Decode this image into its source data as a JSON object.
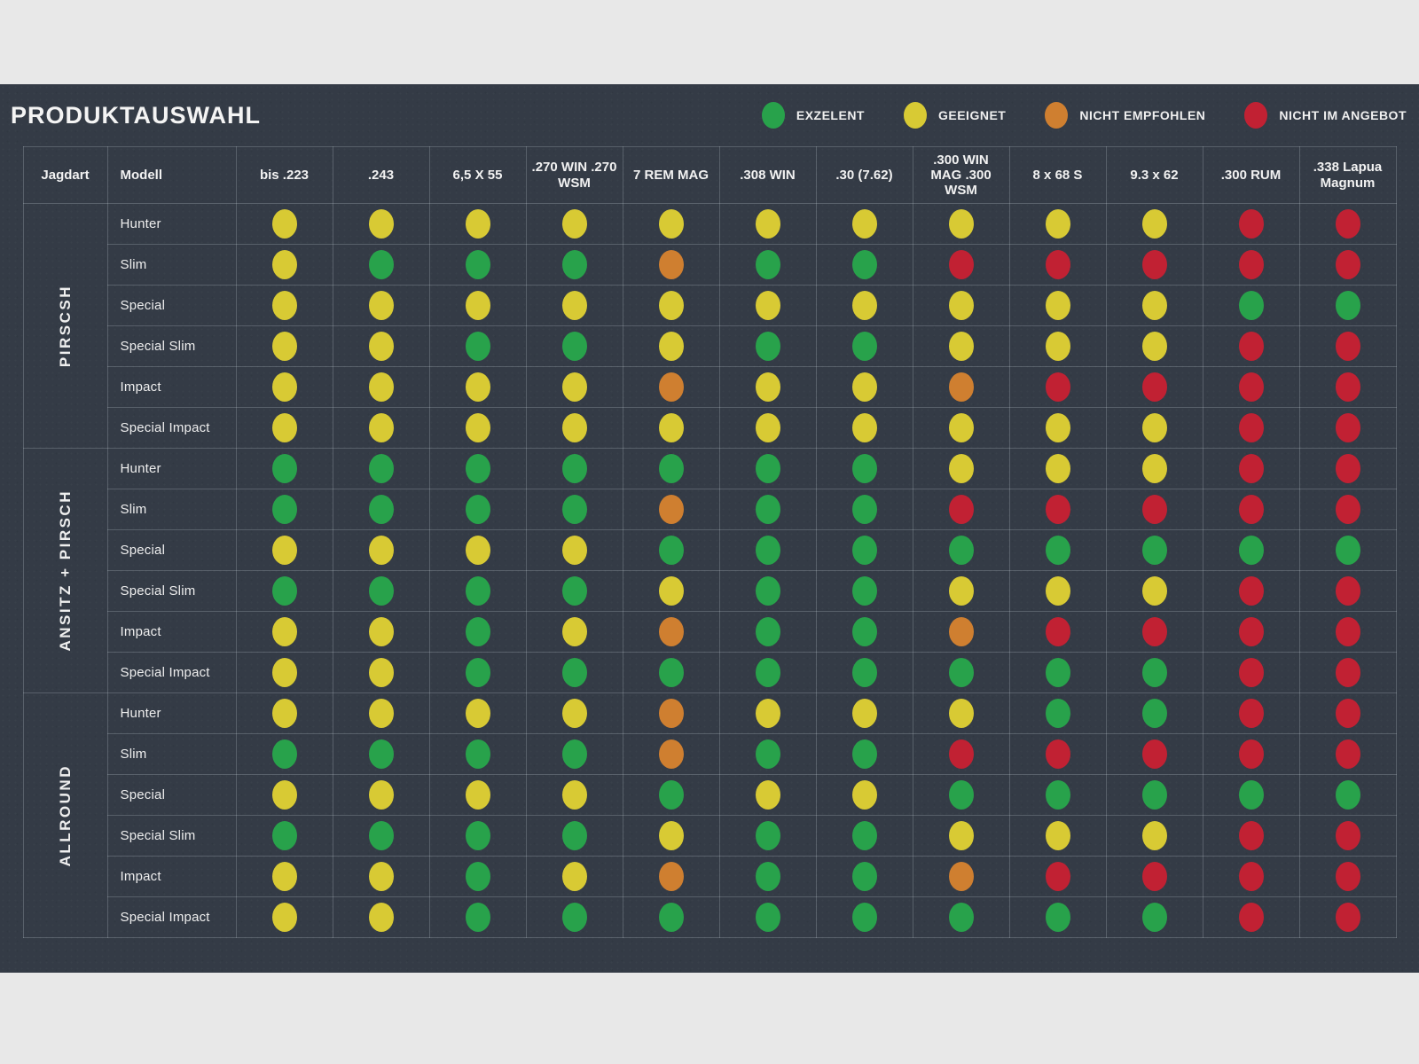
{
  "title": "PRODUKTAUSWAHL",
  "legend": {
    "items": [
      {
        "label": "EXZELENT",
        "code": "ex",
        "color": "#28a24b"
      },
      {
        "label": "GEEIGNET",
        "code": "ge",
        "color": "#d8ca34"
      },
      {
        "label": "NICHT EMPFOHLEN",
        "code": "ne",
        "color": "#cf7f30"
      },
      {
        "label": "NICHT IM ANGEBOT",
        "code": "na",
        "color": "#c12133"
      }
    ]
  },
  "colors": {
    "page_bg": "#e8e8e8",
    "panel_bg": "#343b46",
    "grid_line": "rgba(220,228,238,0.22)",
    "text": "#f2f2f2",
    "ex": "#28a24b",
    "ge": "#d8ca34",
    "ne": "#cf7f30",
    "na": "#c12133"
  },
  "chart_data": {
    "type": "heatmap",
    "title": "PRODUKTAUSWAHL",
    "rating_scale": {
      "ex": "EXZELENT",
      "ge": "GEEIGNET",
      "ne": "NICHT EMPFOHLEN",
      "na": "NICHT IM ANGEBOT"
    },
    "row_header_labels": [
      "Jagdart",
      "Modell"
    ],
    "columns": [
      "bis .223",
      ".243",
      "6,5 X 55",
      ".270 WIN .270 WSM",
      "7 REM MAG",
      ".308 WIN",
      ".30 (7.62)",
      ".300 WIN MAG .300 WSM",
      "8 x 68 S",
      "9.3 x 62",
      ".300 RUM",
      ".338 Lapua Magnum"
    ],
    "groups": [
      {
        "jagdart": "PIRSCSH",
        "rows": [
          {
            "modell": "Hunter",
            "ratings": [
              "ge",
              "ge",
              "ge",
              "ge",
              "ge",
              "ge",
              "ge",
              "ge",
              "ge",
              "ge",
              "na",
              "na"
            ]
          },
          {
            "modell": "Slim",
            "ratings": [
              "ge",
              "ex",
              "ex",
              "ex",
              "ne",
              "ex",
              "ex",
              "na",
              "na",
              "na",
              "na",
              "na"
            ]
          },
          {
            "modell": "Special",
            "ratings": [
              "ge",
              "ge",
              "ge",
              "ge",
              "ge",
              "ge",
              "ge",
              "ge",
              "ge",
              "ge",
              "ex",
              "ex"
            ]
          },
          {
            "modell": "Special Slim",
            "ratings": [
              "ge",
              "ge",
              "ex",
              "ex",
              "ge",
              "ex",
              "ex",
              "ge",
              "ge",
              "ge",
              "na",
              "na"
            ]
          },
          {
            "modell": "Impact",
            "ratings": [
              "ge",
              "ge",
              "ge",
              "ge",
              "ne",
              "ge",
              "ge",
              "ne",
              "na",
              "na",
              "na",
              "na"
            ]
          },
          {
            "modell": "Special Impact",
            "ratings": [
              "ge",
              "ge",
              "ge",
              "ge",
              "ge",
              "ge",
              "ge",
              "ge",
              "ge",
              "ge",
              "na",
              "na"
            ]
          }
        ]
      },
      {
        "jagdart": "ANSITZ + PIRSCH",
        "rows": [
          {
            "modell": "Hunter",
            "ratings": [
              "ex",
              "ex",
              "ex",
              "ex",
              "ex",
              "ex",
              "ex",
              "ge",
              "ge",
              "ge",
              "na",
              "na"
            ]
          },
          {
            "modell": "Slim",
            "ratings": [
              "ex",
              "ex",
              "ex",
              "ex",
              "ne",
              "ex",
              "ex",
              "na",
              "na",
              "na",
              "na",
              "na"
            ]
          },
          {
            "modell": "Special",
            "ratings": [
              "ge",
              "ge",
              "ge",
              "ge",
              "ex",
              "ex",
              "ex",
              "ex",
              "ex",
              "ex",
              "ex",
              "ex"
            ]
          },
          {
            "modell": "Special Slim",
            "ratings": [
              "ex",
              "ex",
              "ex",
              "ex",
              "ge",
              "ex",
              "ex",
              "ge",
              "ge",
              "ge",
              "na",
              "na"
            ]
          },
          {
            "modell": "Impact",
            "ratings": [
              "ge",
              "ge",
              "ex",
              "ge",
              "ne",
              "ex",
              "ex",
              "ne",
              "na",
              "na",
              "na",
              "na"
            ]
          },
          {
            "modell": "Special Impact",
            "ratings": [
              "ge",
              "ge",
              "ex",
              "ex",
              "ex",
              "ex",
              "ex",
              "ex",
              "ex",
              "ex",
              "na",
              "na"
            ]
          }
        ]
      },
      {
        "jagdart": "ALLROUND",
        "rows": [
          {
            "modell": "Hunter",
            "ratings": [
              "ge",
              "ge",
              "ge",
              "ge",
              "ne",
              "ge",
              "ge",
              "ge",
              "ex",
              "ex",
              "na",
              "na"
            ]
          },
          {
            "modell": "Slim",
            "ratings": [
              "ex",
              "ex",
              "ex",
              "ex",
              "ne",
              "ex",
              "ex",
              "na",
              "na",
              "na",
              "na",
              "na"
            ]
          },
          {
            "modell": "Special",
            "ratings": [
              "ge",
              "ge",
              "ge",
              "ge",
              "ex",
              "ge",
              "ge",
              "ex",
              "ex",
              "ex",
              "ex",
              "ex"
            ]
          },
          {
            "modell": "Special Slim",
            "ratings": [
              "ex",
              "ex",
              "ex",
              "ex",
              "ge",
              "ex",
              "ex",
              "ge",
              "ge",
              "ge",
              "na",
              "na"
            ]
          },
          {
            "modell": "Impact",
            "ratings": [
              "ge",
              "ge",
              "ex",
              "ge",
              "ne",
              "ex",
              "ex",
              "ne",
              "na",
              "na",
              "na",
              "na"
            ]
          },
          {
            "modell": "Special Impact",
            "ratings": [
              "ge",
              "ge",
              "ex",
              "ex",
              "ex",
              "ex",
              "ex",
              "ex",
              "ex",
              "ex",
              "na",
              "na"
            ]
          }
        ]
      }
    ]
  }
}
